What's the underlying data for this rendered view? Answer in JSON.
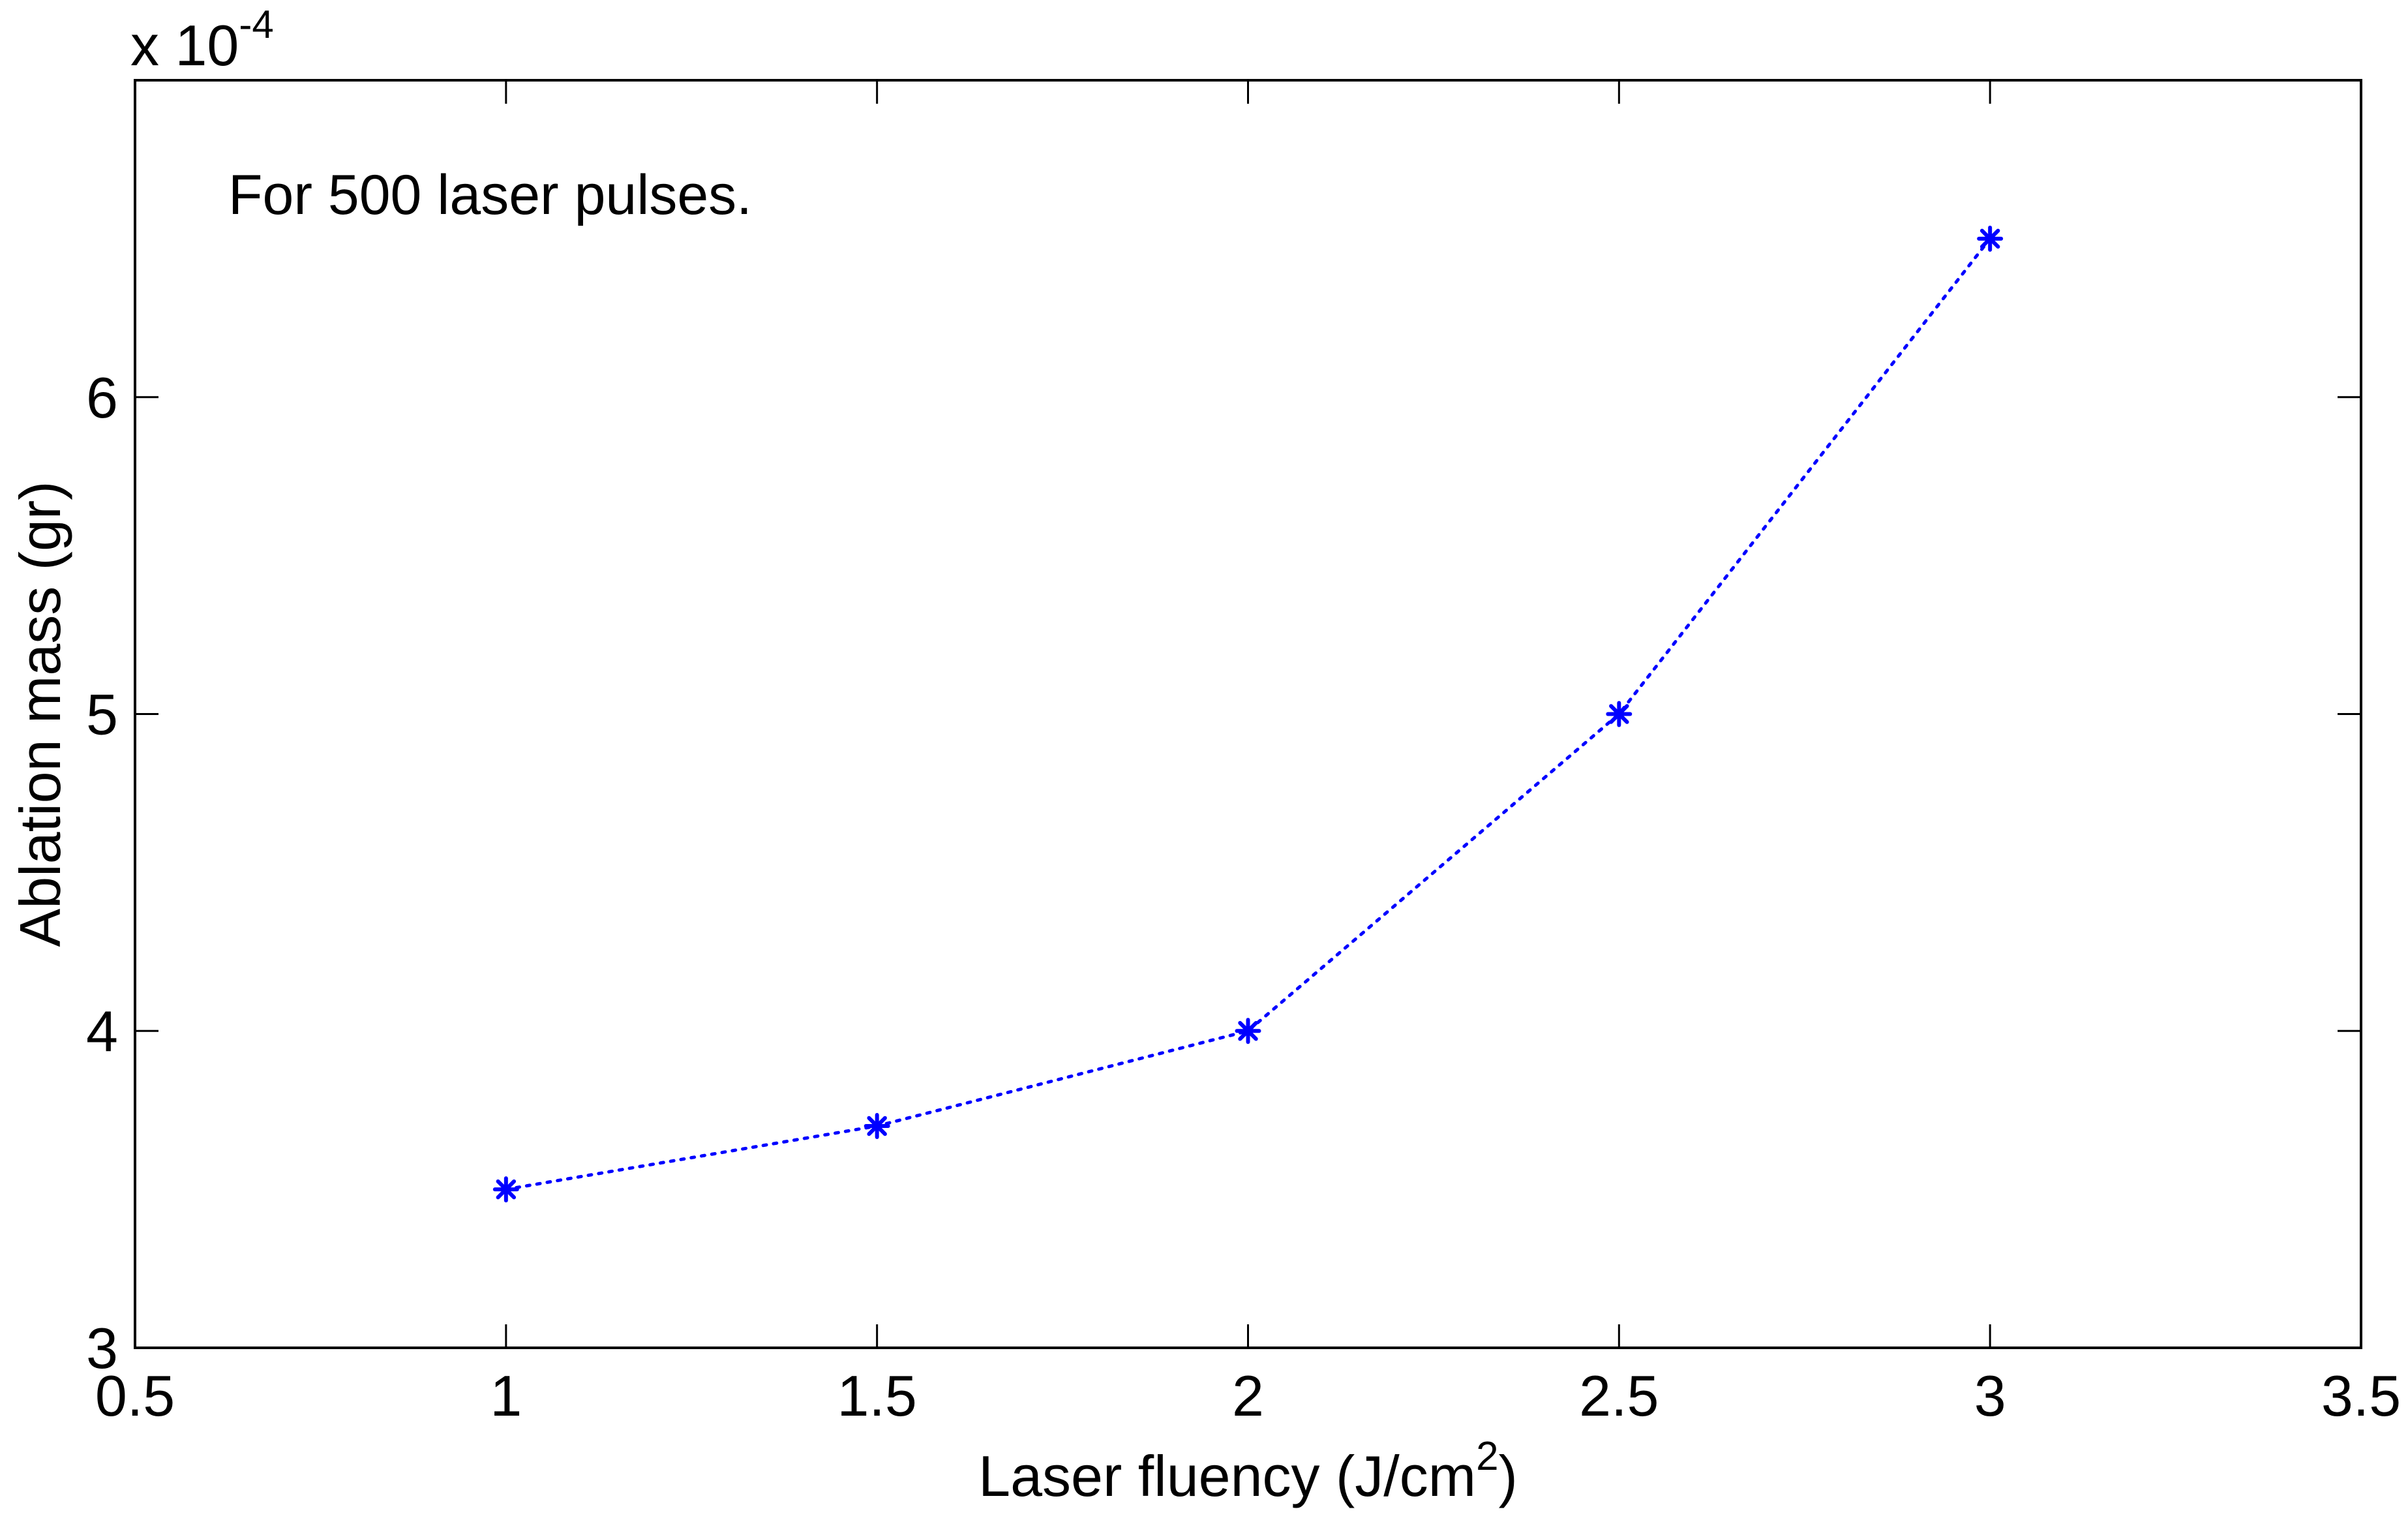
{
  "chart_data": {
    "type": "line",
    "x": [
      1,
      1.5,
      2,
      2.5,
      3
    ],
    "series": [
      {
        "values": [
          0.00035,
          0.00037,
          0.0004,
          0.0005,
          0.00065
        ],
        "color": "#0000ff",
        "marker": "asterisk",
        "line_style": "dotted"
      }
    ],
    "xlim": [
      0.5,
      3.5
    ],
    "ylim": [
      0.0003,
      0.0007
    ],
    "xticks": [
      0.5,
      1,
      1.5,
      2,
      2.5,
      3,
      3.5
    ],
    "xtick_labels": [
      "0.5",
      "1",
      "1.5",
      "2",
      "2.5",
      "3",
      "3.5"
    ],
    "yticks": [
      3,
      4,
      5,
      6
    ],
    "ytick_labels": [
      "3",
      "4",
      "5",
      "6"
    ],
    "y_multiplier": {
      "prefix": "x 10",
      "exponent": "-4"
    },
    "xlabel": {
      "main": "Laser fluency (J/cm",
      "superscript": "2",
      "suffix": ")"
    },
    "ylabel": "Ablation mass (gr)",
    "annotation": "For 500 laser pulses.",
    "grid": false,
    "legend": false
  }
}
